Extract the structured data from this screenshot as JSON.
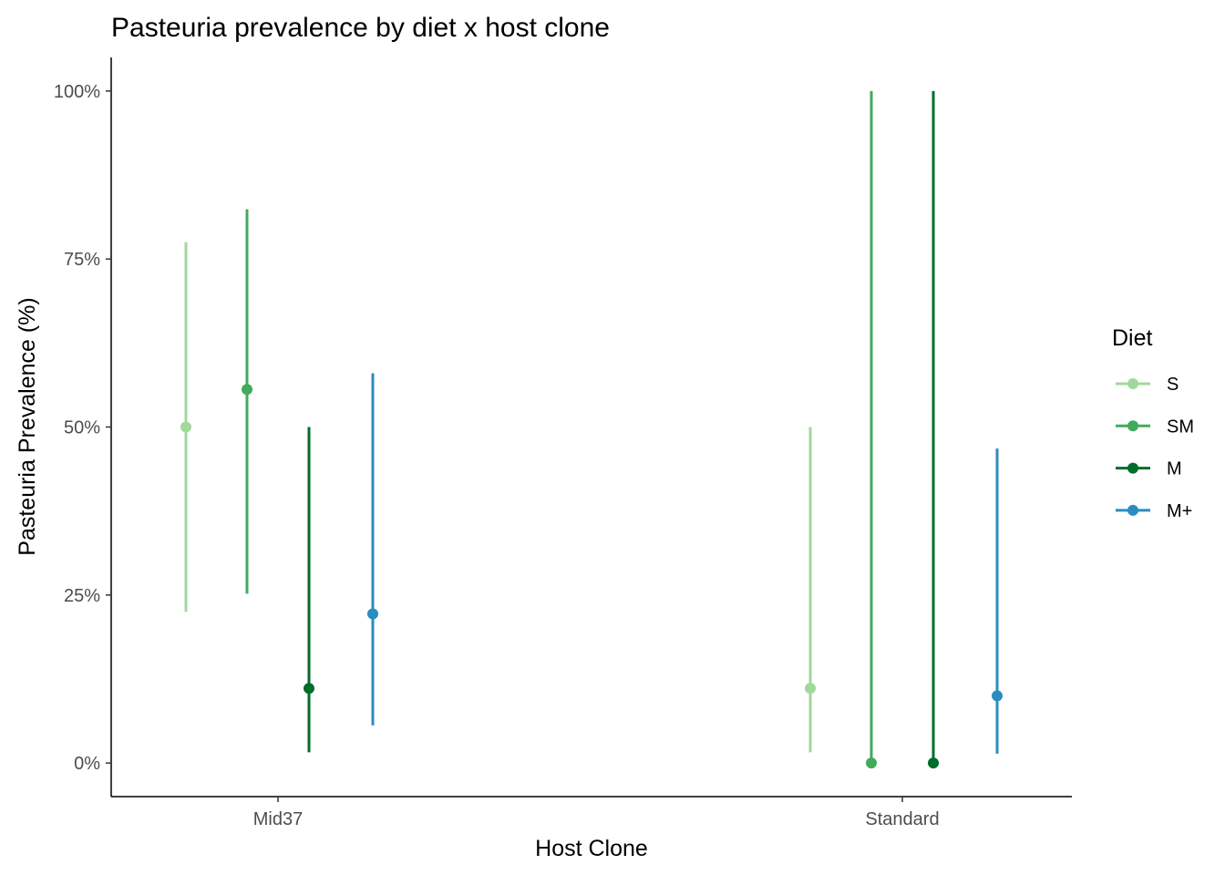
{
  "chart_data": {
    "type": "pointrange",
    "title": "Pasteuria prevalence by diet x host clone",
    "xlabel": "Host Clone",
    "ylabel": "Pasteuria Prevalence (%)",
    "categories": [
      "Mid37",
      "Standard"
    ],
    "y_ticks": [
      0,
      25,
      50,
      75,
      100
    ],
    "y_tick_labels": [
      "0%",
      "25%",
      "50%",
      "75%",
      "100%"
    ],
    "ylim": [
      -5,
      105
    ],
    "legend": {
      "title": "Diet",
      "position": "right"
    },
    "series": [
      {
        "name": "S",
        "color": "#a1d99b",
        "points": [
          {
            "x": "Mid37",
            "y": 50.0,
            "lower": 22.5,
            "upper": 77.5
          },
          {
            "x": "Standard",
            "y": 11.1,
            "lower": 1.6,
            "upper": 50.0
          }
        ]
      },
      {
        "name": "SM",
        "color": "#41ab5d",
        "points": [
          {
            "x": "Mid37",
            "y": 55.6,
            "lower": 25.2,
            "upper": 82.4
          },
          {
            "x": "Standard",
            "y": 0.0,
            "lower": 0.0,
            "upper": 100.0
          }
        ]
      },
      {
        "name": "M",
        "color": "#006d2c",
        "points": [
          {
            "x": "Mid37",
            "y": 11.1,
            "lower": 1.6,
            "upper": 50.0
          },
          {
            "x": "Standard",
            "y": 0.0,
            "lower": 0.0,
            "upper": 100.0
          }
        ]
      },
      {
        "name": "M+",
        "color": "#2b8cbe",
        "points": [
          {
            "x": "Mid37",
            "y": 22.2,
            "lower": 5.6,
            "upper": 58.0
          },
          {
            "x": "Standard",
            "y": 10.0,
            "lower": 1.4,
            "upper": 46.8
          }
        ]
      }
    ],
    "grid": false
  }
}
